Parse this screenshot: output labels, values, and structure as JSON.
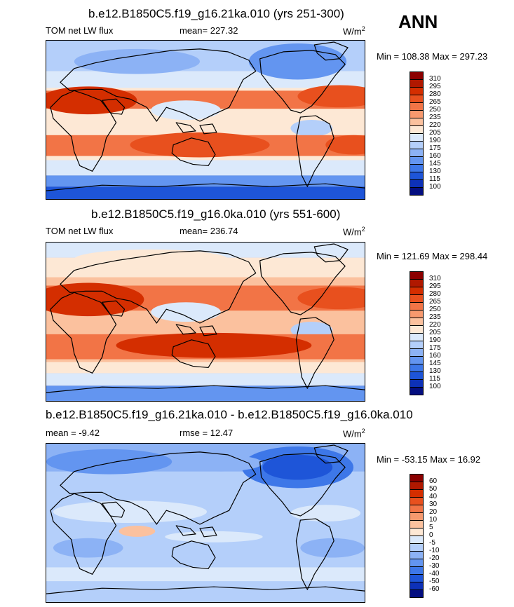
{
  "season": "ANN",
  "units_base": "W/m",
  "units_exp": "2",
  "panels": [
    {
      "title": "b.e12.B1850C5.f19_g16.21ka.010 (yrs 251-300)",
      "left_label": "TOM net LW flux",
      "mean_label": "mean= 227.32",
      "minmax": "Min = 108.38 Max = 297.23",
      "colorbar": {
        "ticks": [
          "310",
          "295",
          "280",
          "265",
          "250",
          "235",
          "220",
          "205",
          "190",
          "175",
          "160",
          "145",
          "130",
          "115",
          "100"
        ],
        "colors": [
          "#8b0000",
          "#b01800",
          "#d42e00",
          "#e8501e",
          "#f27446",
          "#f7996e",
          "#fbc19e",
          "#fde8d5",
          "#dbe9fb",
          "#b4cffa",
          "#8cb2f5",
          "#6395f0",
          "#3d77e8",
          "#1e55d8",
          "#0d31b8",
          "#040e80"
        ]
      }
    },
    {
      "title": "b.e12.B1850C5.f19_g16.0ka.010 (yrs 551-600)",
      "left_label": "TOM net LW flux",
      "mean_label": "mean= 236.74",
      "minmax": "Min = 121.69 Max = 298.44",
      "colorbar": {
        "ticks": [
          "310",
          "295",
          "280",
          "265",
          "250",
          "235",
          "220",
          "205",
          "190",
          "175",
          "160",
          "145",
          "130",
          "115",
          "100"
        ],
        "colors": [
          "#8b0000",
          "#b01800",
          "#d42e00",
          "#e8501e",
          "#f27446",
          "#f7996e",
          "#fbc19e",
          "#fde8d5",
          "#dbe9fb",
          "#b4cffa",
          "#8cb2f5",
          "#6395f0",
          "#3d77e8",
          "#1e55d8",
          "#0d31b8",
          "#040e80"
        ]
      }
    },
    {
      "title": "b.e12.B1850C5.f19_g16.21ka.010 - b.e12.B1850C5.f19_g16.0ka.010",
      "left_label": "mean =  -9.42",
      "mean_label": "rmse =  12.47",
      "minmax": "Min = -53.15 Max =  16.92",
      "colorbar": {
        "ticks": [
          "60",
          "50",
          "40",
          "30",
          "20",
          "10",
          "5",
          "0",
          "-5",
          "-10",
          "-20",
          "-30",
          "-40",
          "-50",
          "-60"
        ],
        "colors": [
          "#8b0000",
          "#b01800",
          "#d42e00",
          "#e8501e",
          "#f27446",
          "#f7996e",
          "#fbc19e",
          "#fde8d5",
          "#dbe9fb",
          "#b4cffa",
          "#8cb2f5",
          "#6395f0",
          "#3d77e8",
          "#1e55d8",
          "#0d31b8",
          "#040e80"
        ]
      }
    }
  ]
}
